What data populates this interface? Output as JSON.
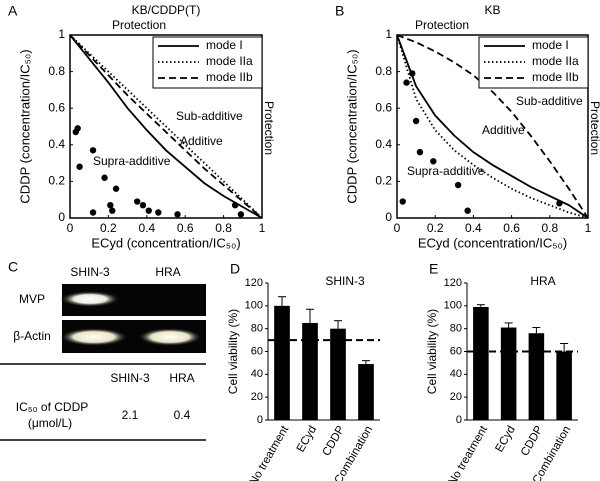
{
  "chart_data": [
    {
      "type": "isobologram",
      "panel_label": "A",
      "title": "KB/CDDP(T)",
      "xlabel": "ECyd (concentration/IC₅₀)",
      "ylabel": "CDDP (concentration/IC₅₀)",
      "xlim": [
        0,
        1
      ],
      "ylim": [
        0,
        1
      ],
      "xticks": [
        0,
        0.2,
        0.4,
        0.6,
        0.8,
        1
      ],
      "yticks": [
        0,
        0.2,
        0.4,
        0.6,
        0.8,
        1
      ],
      "legend": "upper right",
      "x": [
        0,
        0.1,
        0.2,
        0.3,
        0.4,
        0.5,
        0.6,
        0.7,
        0.8,
        0.9,
        1
      ],
      "series": [
        {
          "name": "mode I",
          "color": "#000000",
          "style": "solid",
          "values": [
            1,
            0.87,
            0.74,
            0.6,
            0.48,
            0.37,
            0.28,
            0.19,
            0.12,
            0.06,
            0
          ]
        },
        {
          "name": "mode IIa",
          "color": "#000000",
          "style": "dotted",
          "values": [
            1,
            0.9,
            0.8,
            0.7,
            0.6,
            0.5,
            0.4,
            0.3,
            0.2,
            0.1,
            0
          ]
        },
        {
          "name": "mode IIb",
          "color": "#000000",
          "style": "dashed",
          "values": [
            1,
            0.89,
            0.78,
            0.67,
            0.57,
            0.47,
            0.37,
            0.27,
            0.18,
            0.09,
            0
          ]
        }
      ],
      "points": {
        "color": "#000000",
        "x": [
          0.03,
          0.04,
          0.05,
          0.12,
          0.12,
          0.18,
          0.21,
          0.22,
          0.24,
          0.35,
          0.38,
          0.41,
          0.46,
          0.56,
          0.86,
          0.89
        ],
        "y": [
          0.47,
          0.49,
          0.28,
          0.37,
          0.03,
          0.22,
          0.07,
          0.04,
          0.16,
          0.09,
          0.07,
          0.04,
          0.03,
          0.02,
          0.07,
          0.02
        ]
      },
      "annotations": [
        "Protection",
        "Protection",
        "Sub-additive",
        "Additive",
        "Supra-additive"
      ]
    },
    {
      "type": "isobologram",
      "panel_label": "B",
      "title": "KB",
      "xlabel": "ECyd (concentration/IC₅₀)",
      "ylabel": "CDDP (concentration/IC₅₀)",
      "xlim": [
        0,
        1
      ],
      "ylim": [
        0,
        1
      ],
      "xticks": [
        0,
        0.2,
        0.4,
        0.6,
        0.8,
        1
      ],
      "yticks": [
        0,
        0.2,
        0.4,
        0.6,
        0.8,
        1
      ],
      "legend": "upper right",
      "x": [
        0,
        0.1,
        0.2,
        0.3,
        0.4,
        0.5,
        0.6,
        0.7,
        0.8,
        0.9,
        1
      ],
      "series": [
        {
          "name": "mode I",
          "color": "#000000",
          "style": "solid",
          "values": [
            1,
            0.72,
            0.56,
            0.45,
            0.36,
            0.29,
            0.23,
            0.17,
            0.12,
            0.07,
            0
          ]
        },
        {
          "name": "mode IIa",
          "color": "#000000",
          "style": "dotted",
          "values": [
            1,
            0.65,
            0.48,
            0.37,
            0.29,
            0.22,
            0.16,
            0.11,
            0.07,
            0.03,
            0
          ]
        },
        {
          "name": "mode IIb",
          "color": "#000000",
          "style": "dashed",
          "values": [
            1,
            0.96,
            0.91,
            0.85,
            0.78,
            0.69,
            0.58,
            0.45,
            0.31,
            0.16,
            0
          ]
        }
      ],
      "points": {
        "color": "#000000",
        "x": [
          0.05,
          0.08,
          0.1,
          0.12,
          0.19,
          0.32,
          0.37,
          0.03,
          0.85
        ],
        "y": [
          0.74,
          0.79,
          0.53,
          0.36,
          0.31,
          0.18,
          0.04,
          0.09,
          0.08
        ]
      },
      "annotations": [
        "Protection",
        "Protection",
        "Sub-additive",
        "Additive",
        "Supra-additive"
      ]
    },
    {
      "type": "bar",
      "panel_label": "D",
      "title": "SHIN-3",
      "ylabel": "Cell viability (%)",
      "categories": [
        "No treatment",
        "ECyd",
        "CDDP",
        "Combination"
      ],
      "values": [
        100,
        85,
        80,
        49
      ],
      "errors": [
        8,
        12,
        7,
        3
      ],
      "color": "#000000",
      "ylim": [
        0,
        120
      ],
      "yticks": [
        0,
        20,
        40,
        60,
        80,
        100,
        120
      ],
      "reference_line": 70
    },
    {
      "type": "bar",
      "panel_label": "E",
      "title": "HRA",
      "ylabel": "Cell viability (%)",
      "categories": [
        "No treatment",
        "ECyd",
        "CDDP",
        "Combination"
      ],
      "values": [
        99,
        81,
        76,
        60
      ],
      "errors": [
        2,
        4,
        5,
        7
      ],
      "color": "#000000",
      "ylim": [
        0,
        120
      ],
      "yticks": [
        0,
        20,
        40,
        60,
        80,
        100,
        120
      ],
      "reference_line": 60
    }
  ],
  "panel_c": {
    "panel_label": "C",
    "lanes": [
      "SHIN-3",
      "HRA"
    ],
    "blots": [
      "MVP",
      "β-Actin"
    ],
    "table": {
      "header": [
        "SHIN-3",
        "HRA"
      ],
      "row_label": [
        "IC₅₀ of CDDP",
        "(μmol/L)"
      ],
      "values": [
        "2.1",
        "0.4"
      ]
    }
  }
}
